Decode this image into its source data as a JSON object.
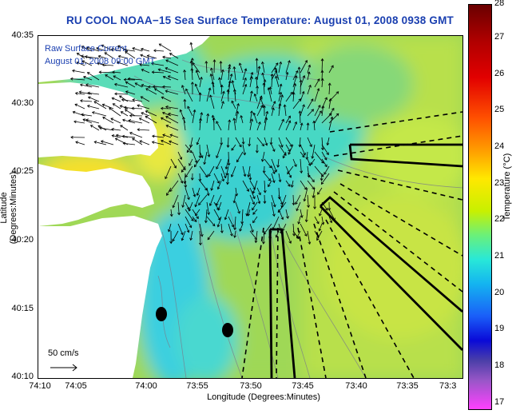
{
  "title": "RU COOL  NOAA−15  Sea Surface Temperature:  August 01, 2008 0938 GMT",
  "legend": {
    "line1": "Raw Surface Current",
    "line2": "August 01, 2008 09:00 GMT"
  },
  "scale_label": "50 cm/s",
  "x_axis": {
    "label": "Longitude (Degrees:Minutes)",
    "ticks": [
      "74:10",
      "74:05",
      "74:00",
      "73:55",
      "73:50",
      "73:45",
      "73:40",
      "73:35",
      "73:3"
    ]
  },
  "y_axis": {
    "label": "Latitude (Degrees:Minutes)",
    "ticks": [
      "40:35",
      "40:30",
      "40:25",
      "40:20",
      "40:15",
      "40:10"
    ]
  },
  "colorbar": {
    "label": "Temperature (°C)",
    "ticks": [
      "28",
      "27",
      "26",
      "25",
      "24",
      "23",
      "22",
      "21",
      "20",
      "19",
      "18",
      "17"
    ],
    "range": [
      17,
      28
    ]
  },
  "colors": {
    "title": "#1a3fb0",
    "land": "#ffffff",
    "sea_base": "#9fd857"
  }
}
